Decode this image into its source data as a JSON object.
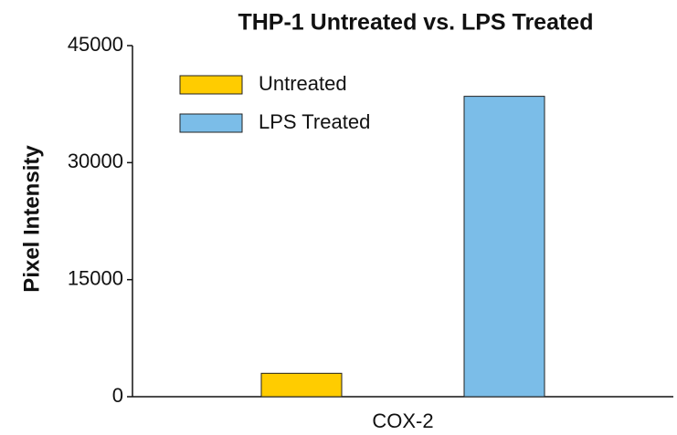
{
  "chart_data": {
    "type": "bar",
    "title": "THP-1 Untreated vs. LPS Treated",
    "y_label": "Pixel Intensity",
    "categories": [
      "COX-2"
    ],
    "series": [
      {
        "name": "Untreated",
        "color": "#ffcc00",
        "values": [
          3000
        ]
      },
      {
        "name": "LPS Treated",
        "color": "#7bbde8",
        "values": [
          38500
        ]
      }
    ],
    "ylim": [
      0,
      45000
    ],
    "yticks": [
      0,
      15000,
      30000,
      45000
    ],
    "legend": "upper left"
  }
}
